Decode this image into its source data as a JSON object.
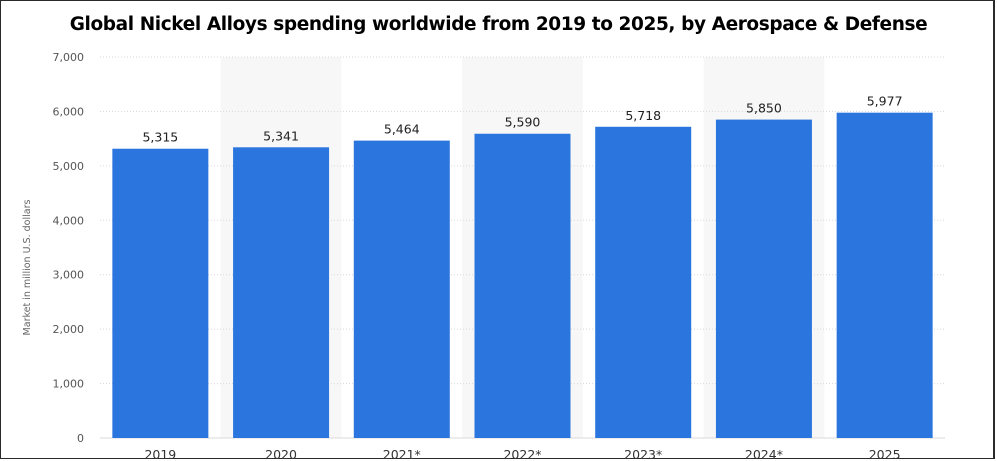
{
  "chart_data": {
    "type": "bar",
    "title": "Global Nickel Alloys spending worldwide from 2019 to 2025, by Aerospace & Defense",
    "xlabel": "",
    "ylabel": "Market in million U.S. dollars",
    "categories": [
      "2019",
      "2020",
      "2021*",
      "2022*",
      "2023*",
      "2024*",
      "2025"
    ],
    "values": [
      5315,
      5341,
      5464,
      5590,
      5718,
      5850,
      5977
    ],
    "value_labels": [
      "5,315",
      "5,341",
      "5,464",
      "5,590",
      "5,718",
      "5,850",
      "5,977"
    ],
    "ylim": [
      0,
      7000
    ],
    "yticks": [
      0,
      1000,
      2000,
      3000,
      4000,
      5000,
      6000,
      7000
    ],
    "ytick_labels": [
      "0",
      "1,000",
      "2,000",
      "3,000",
      "4,000",
      "5,000",
      "6,000",
      "7,000"
    ],
    "grid": true,
    "legend": "none",
    "colors": {
      "bar": "#2b75de",
      "grid": "#d8d8d8",
      "band": "#f7f7f7"
    }
  }
}
